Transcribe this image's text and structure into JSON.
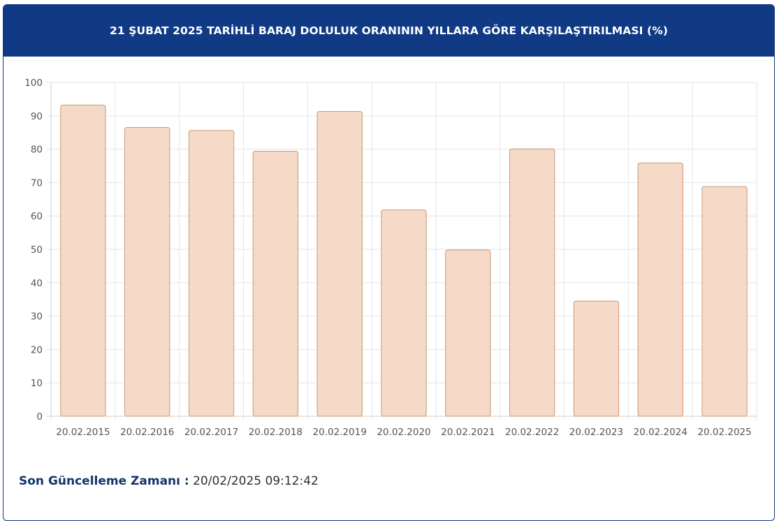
{
  "header": {
    "title": "21 ŞUBAT 2025 TARİHLİ BARAJ DOLULUK ORANININ YILLARA GÖRE KARŞILAŞTIRILMASI (%)"
  },
  "footer": {
    "label": "Son Güncelleme Zamanı :",
    "value": "20/02/2025 09:12:42"
  },
  "colors": {
    "header_bg": "#113a85",
    "bar_fill": "#f6dac8",
    "bar_stroke": "#c79a72",
    "grid": "#e6e6e6"
  },
  "chart_data": {
    "type": "bar",
    "title": "21 ŞUBAT 2025 TARİHLİ BARAJ DOLULUK ORANININ YILLARA GÖRE KARŞILAŞTIRILMASI (%)",
    "categories": [
      "20.02.2015",
      "20.02.2016",
      "20.02.2017",
      "20.02.2018",
      "20.02.2019",
      "20.02.2020",
      "20.02.2021",
      "20.02.2022",
      "20.02.2023",
      "20.02.2024",
      "20.02.2025"
    ],
    "values": [
      93.2,
      86.5,
      85.6,
      79.4,
      91.3,
      61.8,
      49.8,
      80.1,
      34.5,
      75.9,
      68.8
    ],
    "ylim": [
      0,
      100
    ],
    "yticks": [
      0,
      10,
      20,
      30,
      40,
      50,
      60,
      70,
      80,
      90,
      100
    ],
    "grid": true,
    "legend": "none"
  }
}
